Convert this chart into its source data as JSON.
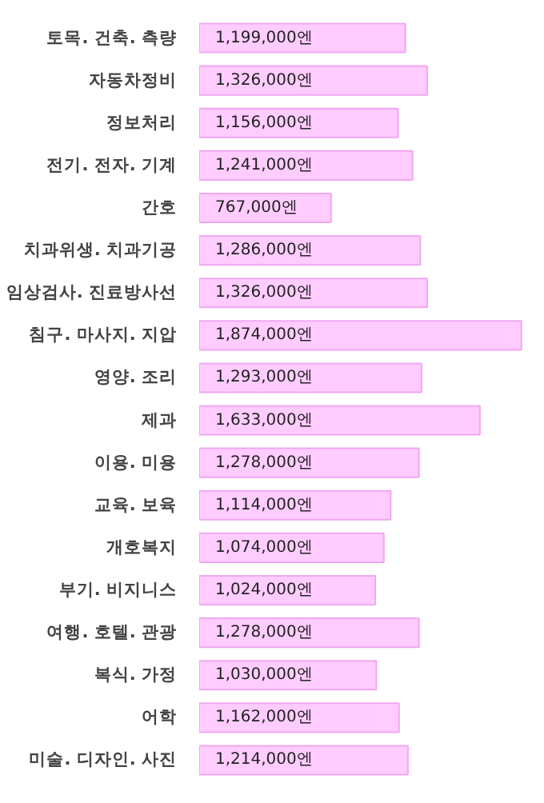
{
  "chart_data": {
    "type": "bar",
    "orientation": "horizontal",
    "tick_labels": "y",
    "grid": false,
    "categories": [
      "토목. 건축. 측량",
      "자동차정비",
      "정보처리",
      "전기. 전자. 기계",
      "간호",
      "치과위생. 치과기공",
      "임상검사. 진료방사선",
      "침구. 마사지. 지압",
      "영양. 조리",
      "제과",
      "이용. 미용",
      "교육. 보육",
      "개호복지",
      "부기. 비지니스",
      "여행. 호텔. 관광",
      "복식. 가정",
      "어학",
      "미술. 디자인. 사진"
    ],
    "values": [
      1199000,
      1326000,
      1156000,
      1241000,
      767000,
      1286000,
      1326000,
      1874000,
      1293000,
      1633000,
      1278000,
      1114000,
      1074000,
      1024000,
      1278000,
      1030000,
      1162000,
      1214000
    ],
    "value_labels": [
      "1,199,000엔",
      "1,326,000엔",
      "1,156,000엔",
      "1,241,000엔",
      "767,000엔",
      "1,286,000엔",
      "1,326,000엔",
      "1,874,000엔",
      "1,293,000엔",
      "1,633,000엔",
      "1,278,000엔",
      "1,114,000엔",
      "1,074,000엔",
      "1,024,000엔",
      "1,278,000엔",
      "1,030,000엔",
      "1,162,000엔",
      "1,214,000엔"
    ],
    "color": "#ffccff",
    "xlim": [
      0,
      1880000
    ]
  }
}
